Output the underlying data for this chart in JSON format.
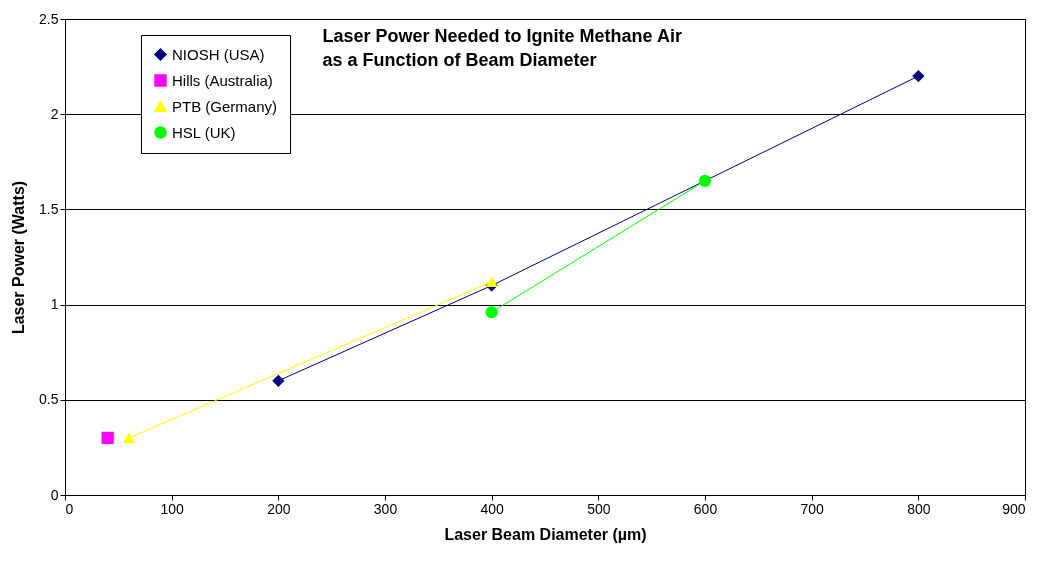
{
  "chart_data": {
    "type": "line",
    "title": "Laser Power Needed to Ignite Methane Air\nas a Function of Beam Diameter",
    "xlabel": "Laser Beam Diameter (µm)",
    "ylabel": "Laser Power (Watts)",
    "series": [
      {
        "name": "NIOSH (USA)",
        "color": "#000080",
        "marker": "diamond",
        "x": [
          200,
          400,
          600,
          800
        ],
        "values": [
          0.6,
          1.1,
          1.65,
          2.2
        ]
      },
      {
        "name": "Hills (Australia)",
        "color": "#ff00ff",
        "marker": "square",
        "x": [
          40
        ],
        "values": [
          0.3
        ]
      },
      {
        "name": "PTB (Germany)",
        "color": "#ffff00",
        "marker": "triangle",
        "x": [
          60,
          400
        ],
        "values": [
          0.3,
          1.12
        ]
      },
      {
        "name": "HSL (UK)",
        "color": "#00ff00",
        "marker": "circle",
        "x": [
          400,
          600
        ],
        "values": [
          0.96,
          1.65
        ]
      }
    ],
    "xlim": [
      0,
      900
    ],
    "xticks": [
      0,
      100,
      200,
      300,
      400,
      500,
      600,
      700,
      800,
      900
    ],
    "ylim": [
      0,
      2.5
    ],
    "yticks": [
      0,
      0.5,
      1,
      1.5,
      2,
      2.5
    ],
    "grid": "y",
    "legend": "top left"
  }
}
